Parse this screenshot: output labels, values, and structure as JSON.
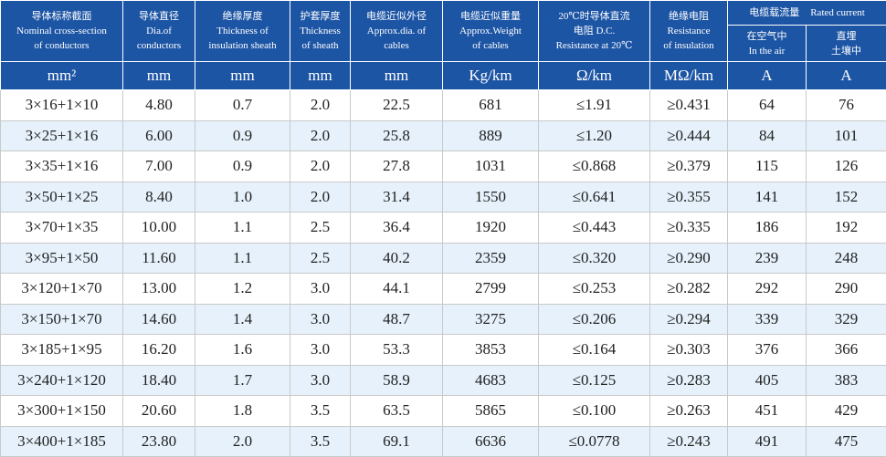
{
  "table": {
    "header": {
      "columns": [
        [
          "导体标称截面",
          "Nominal cross-section",
          "of conductors"
        ],
        [
          "导体直径",
          "Dia.of",
          "conductors"
        ],
        [
          "绝缘厚度",
          "Thickness of",
          "insulation sheath"
        ],
        [
          "护套厚度",
          "Thickness",
          "of sheath"
        ],
        [
          "电缆近似外径",
          "Approx.dia. of",
          "cables"
        ],
        [
          "电缆近似重量",
          "Approx.Weight",
          "of cables"
        ],
        [
          "20℃时导体直流",
          "电阻 D.C.",
          "Resistance at 20℃"
        ],
        [
          "绝缘电阻",
          "Resistance",
          "of insulation"
        ]
      ],
      "group": [
        "电缆载流量",
        "Rated current"
      ],
      "subcolumns": [
        [
          "在空气中",
          "In the air"
        ],
        [
          "直埋",
          "土壤中"
        ]
      ]
    },
    "units": [
      "mm²",
      "mm",
      "mm",
      "mm",
      "mm",
      "Kg/km",
      "Ω/km",
      "MΩ/km",
      "A",
      "A"
    ],
    "rows": [
      [
        "3×16+1×10",
        "4.80",
        "0.7",
        "2.0",
        "22.5",
        "681",
        "≤1.91",
        "≥0.431",
        "64",
        "76"
      ],
      [
        "3×25+1×16",
        "6.00",
        "0.9",
        "2.0",
        "25.8",
        "889",
        "≤1.20",
        "≥0.444",
        "84",
        "101"
      ],
      [
        "3×35+1×16",
        "7.00",
        "0.9",
        "2.0",
        "27.8",
        "1031",
        "≤0.868",
        "≥0.379",
        "115",
        "126"
      ],
      [
        "3×50+1×25",
        "8.40",
        "1.0",
        "2.0",
        "31.4",
        "1550",
        "≤0.641",
        "≥0.355",
        "141",
        "152"
      ],
      [
        "3×70+1×35",
        "10.00",
        "1.1",
        "2.5",
        "36.4",
        "1920",
        "≤0.443",
        "≥0.335",
        "186",
        "192"
      ],
      [
        "3×95+1×50",
        "11.60",
        "1.1",
        "2.5",
        "40.2",
        "2359",
        "≤0.320",
        "≥0.290",
        "239",
        "248"
      ],
      [
        "3×120+1×70",
        "13.00",
        "1.2",
        "3.0",
        "44.1",
        "2799",
        "≤0.253",
        "≥0.282",
        "292",
        "290"
      ],
      [
        "3×150+1×70",
        "14.60",
        "1.4",
        "3.0",
        "48.7",
        "3275",
        "≤0.206",
        "≥0.294",
        "339",
        "329"
      ],
      [
        "3×185+1×95",
        "16.20",
        "1.6",
        "3.0",
        "53.3",
        "3853",
        "≤0.164",
        "≥0.303",
        "376",
        "366"
      ],
      [
        "3×240+1×120",
        "18.40",
        "1.7",
        "3.0",
        "58.9",
        "4683",
        "≤0.125",
        "≥0.283",
        "405",
        "383"
      ],
      [
        "3×300+1×150",
        "20.60",
        "1.8",
        "3.5",
        "63.5",
        "5865",
        "≤0.100",
        "≥0.263",
        "451",
        "429"
      ],
      [
        "3×400+1×185",
        "23.80",
        "2.0",
        "3.5",
        "69.1",
        "6636",
        "≤0.0778",
        "≥0.243",
        "491",
        "475"
      ]
    ]
  }
}
